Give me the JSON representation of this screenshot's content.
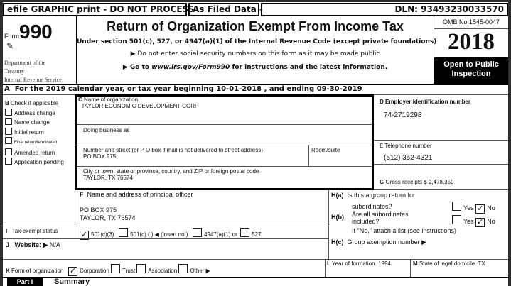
{
  "header": {
    "efile": "efile GRAPHIC print - DO NOT PROCESS",
    "as_filed": "As Filed Data -",
    "dln": "DLN: 93493230033570"
  },
  "form": {
    "form_label": "Form",
    "form_number": "990",
    "dept": [
      "Department of the",
      "Treasury",
      "Internal Revenue Service"
    ],
    "title": "Return of Organization Exempt From Income Tax",
    "subtitle": "Under section 501(c), 527, or 4947(a)(1) of the Internal Revenue Code (except private foundations)",
    "notice1": "▶ Do not enter social security numbers on this form as it may be made public",
    "notice2_pre": "▶ Go to ",
    "notice2_link": "www.irs.gov/Form990",
    "notice2_post": " for instructions and the latest information.",
    "omb": "OMB No 1545-0047",
    "year": "2018",
    "open": "Open to Public Inspection"
  },
  "line_a": {
    "letter": "A",
    "text": "For the 2019 calendar year, or tax year beginning 10-01-2018   , and ending 09-30-2019"
  },
  "check_b": {
    "title": "Check if applicable",
    "letter": "B",
    "items": [
      "Address change",
      "Name change",
      "Initial return",
      "Final return/terminated",
      "Amended return",
      "Application pending"
    ]
  },
  "org": {
    "name_label": "Name of organization",
    "name": "TAYLOR ECONOMIC DEVELOPMENT CORP",
    "dba_label": "Doing business as",
    "street_label": "Number and street (or P O  box if mail is not delivered to street address)",
    "room_label": "Room/suite",
    "street": "PO BOX 975",
    "city_label": "City or town, state or province, country, and ZIP or foreign postal code",
    "city": "TAYLOR, TX  76574"
  },
  "ein": {
    "label": "Employer identification number",
    "value": "74-2719298"
  },
  "phone": {
    "label": "E Telephone number",
    "value": "(512) 352-4321"
  },
  "gross": {
    "label": "Gross receipts $",
    "value": "2,478,359"
  },
  "officer": {
    "label": "Name and address of principal officer",
    "line1": "PO BOX 975",
    "line2": "TAYLOR, TX  76574"
  },
  "h": {
    "ha_label": "H(a)",
    "ha_text1": "Is this a group return for",
    "ha_text2": "subordinates?",
    "hb_label": "H(b)",
    "hb_text1": "Are all subordinates",
    "hb_text2": "included?",
    "yes": "Yes",
    "no": "No",
    "ha_answer": "No",
    "hb_answer": "No",
    "attach": "If \"No,\" attach a list  (see instructions)",
    "hc_label": "H(c)",
    "hc_text": "Group exemption number ▶"
  },
  "tax_status": {
    "label": "Tax-exempt status",
    "options": [
      "501(c)(3)",
      "501(c) (   ) ◀ (insert no )",
      "4947(a)(1) or",
      "527"
    ],
    "checked": "501(c)(3)"
  },
  "website": {
    "label": "Website: ▶",
    "value": "N/A"
  },
  "org_form": {
    "label": "Form of organization",
    "options": [
      "Corporation",
      "Trust",
      "Association",
      "Other ▶"
    ],
    "checked": "Corporation"
  },
  "formation": {
    "label": "Year of formation",
    "value": "1994"
  },
  "domicile": {
    "label": "State of legal domicile",
    "value": "TX"
  },
  "part1": {
    "tag": "Part I",
    "title": "Summary"
  }
}
